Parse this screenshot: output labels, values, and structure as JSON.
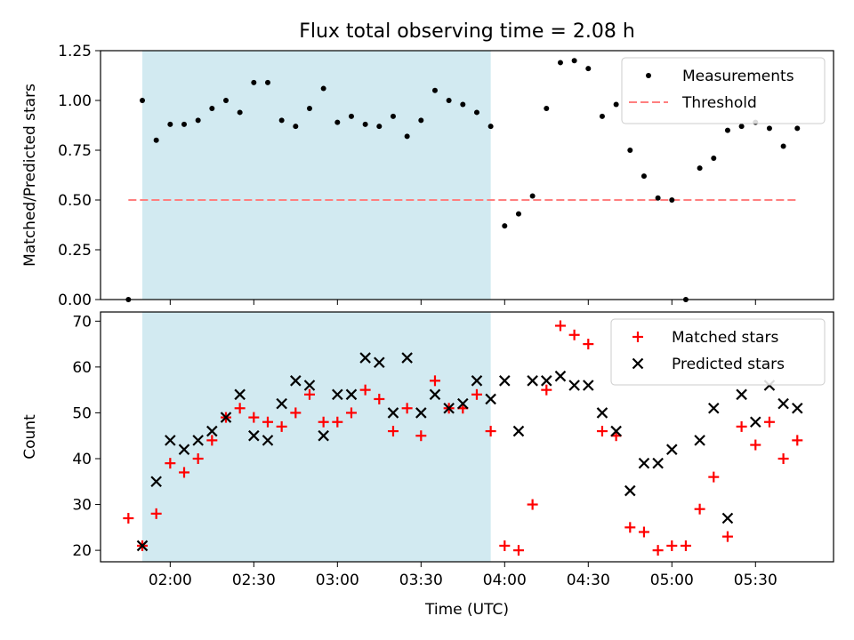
{
  "figure_title": "Flux total observing time = 2.08 h",
  "chart_data": [
    {
      "type": "scatter",
      "title": "Flux total observing time = 2.08 h",
      "xlabel": "",
      "ylabel": "Matched/Predicted stars",
      "xlim": [
        "01:35",
        "05:58"
      ],
      "ylim": [
        0,
        1.25
      ],
      "yticks": [
        "0.00",
        "0.25",
        "0.50",
        "0.75",
        "1.00",
        "1.25"
      ],
      "xtick_positions": [
        "02:00",
        "02:30",
        "03:00",
        "03:30",
        "04:00",
        "04:30",
        "05:00",
        "05:30"
      ],
      "highlight_span": [
        "01:50",
        "03:55"
      ],
      "highlight_color": "#add8e6",
      "threshold": {
        "y": 0.5,
        "x_from": "01:45",
        "x_to": "05:45",
        "label": "Threshold",
        "color": "#ff7f7f"
      },
      "legend": {
        "position": "top-right",
        "entries": [
          "Measurements",
          "Threshold"
        ]
      },
      "series": [
        {
          "name": "Measurements",
          "marker": "dot",
          "color": "#000000",
          "points": [
            [
              "01:45",
              0.0
            ],
            [
              "01:50",
              1.0
            ],
            [
              "01:55",
              0.8
            ],
            [
              "02:00",
              0.88
            ],
            [
              "02:05",
              0.88
            ],
            [
              "02:10",
              0.9
            ],
            [
              "02:15",
              0.96
            ],
            [
              "02:20",
              1.0
            ],
            [
              "02:25",
              0.94
            ],
            [
              "02:30",
              1.09
            ],
            [
              "02:35",
              1.09
            ],
            [
              "02:40",
              0.9
            ],
            [
              "02:45",
              0.87
            ],
            [
              "02:50",
              0.96
            ],
            [
              "02:55",
              1.06
            ],
            [
              "03:00",
              0.89
            ],
            [
              "03:05",
              0.92
            ],
            [
              "03:10",
              0.88
            ],
            [
              "03:15",
              0.87
            ],
            [
              "03:20",
              0.92
            ],
            [
              "03:25",
              0.82
            ],
            [
              "03:30",
              0.9
            ],
            [
              "03:35",
              1.05
            ],
            [
              "03:40",
              1.0
            ],
            [
              "03:45",
              0.98
            ],
            [
              "03:50",
              0.94
            ],
            [
              "03:55",
              0.87
            ],
            [
              "04:00",
              0.37
            ],
            [
              "04:05",
              0.43
            ],
            [
              "04:10",
              0.52
            ],
            [
              "04:15",
              0.96
            ],
            [
              "04:20",
              1.19
            ],
            [
              "04:25",
              1.2
            ],
            [
              "04:30",
              1.16
            ],
            [
              "04:35",
              0.92
            ],
            [
              "04:40",
              0.98
            ],
            [
              "04:45",
              0.75
            ],
            [
              "04:50",
              0.62
            ],
            [
              "04:55",
              0.51
            ],
            [
              "05:00",
              0.5
            ],
            [
              "05:05",
              0.0
            ],
            [
              "05:10",
              0.66
            ],
            [
              "05:15",
              0.71
            ],
            [
              "05:20",
              0.85
            ],
            [
              "05:25",
              0.87
            ],
            [
              "05:30",
              0.89
            ],
            [
              "05:35",
              0.86
            ],
            [
              "05:40",
              0.77
            ],
            [
              "05:45",
              0.86
            ]
          ]
        }
      ]
    },
    {
      "type": "scatter",
      "title": "",
      "xlabel": "Time (UTC)",
      "ylabel": "Count",
      "xlim": [
        "01:35",
        "05:58"
      ],
      "ylim": [
        17.5,
        72
      ],
      "yticks": [
        "20",
        "30",
        "40",
        "50",
        "60",
        "70"
      ],
      "xticks": [
        "02:00",
        "02:30",
        "03:00",
        "03:30",
        "04:00",
        "04:30",
        "05:00",
        "05:30"
      ],
      "highlight_span": [
        "01:50",
        "03:55"
      ],
      "highlight_color": "#add8e6",
      "legend": {
        "position": "top-right",
        "entries": [
          "Matched stars",
          "Predicted stars"
        ]
      },
      "series": [
        {
          "name": "Matched stars",
          "marker": "plus",
          "color": "#ff0000",
          "points": [
            [
              "01:45",
              27
            ],
            [
              "01:50",
              21
            ],
            [
              "01:55",
              28
            ],
            [
              "02:00",
              39
            ],
            [
              "02:05",
              37
            ],
            [
              "02:10",
              40
            ],
            [
              "02:15",
              44
            ],
            [
              "02:20",
              49
            ],
            [
              "02:25",
              51
            ],
            [
              "02:30",
              49
            ],
            [
              "02:35",
              48
            ],
            [
              "02:40",
              47
            ],
            [
              "02:45",
              50
            ],
            [
              "02:50",
              54
            ],
            [
              "02:55",
              48
            ],
            [
              "03:00",
              48
            ],
            [
              "03:05",
              50
            ],
            [
              "03:10",
              55
            ],
            [
              "03:15",
              53
            ],
            [
              "03:20",
              46
            ],
            [
              "03:25",
              51
            ],
            [
              "03:30",
              45
            ],
            [
              "03:35",
              57
            ],
            [
              "03:40",
              51
            ],
            [
              "03:45",
              51
            ],
            [
              "03:50",
              54
            ],
            [
              "03:55",
              46
            ],
            [
              "04:00",
              21
            ],
            [
              "04:05",
              20
            ],
            [
              "04:10",
              30
            ],
            [
              "04:15",
              55
            ],
            [
              "04:20",
              69
            ],
            [
              "04:25",
              67
            ],
            [
              "04:30",
              65
            ],
            [
              "04:35",
              46
            ],
            [
              "04:40",
              45
            ],
            [
              "04:45",
              25
            ],
            [
              "04:50",
              24
            ],
            [
              "04:55",
              20
            ],
            [
              "05:00",
              21
            ],
            [
              "05:05",
              21
            ],
            [
              "05:10",
              29
            ],
            [
              "05:15",
              36
            ],
            [
              "05:20",
              23
            ],
            [
              "05:25",
              47
            ],
            [
              "05:30",
              43
            ],
            [
              "05:35",
              48
            ],
            [
              "05:40",
              40
            ],
            [
              "05:45",
              44
            ]
          ]
        },
        {
          "name": "Predicted stars",
          "marker": "x",
          "color": "#000000",
          "points": [
            [
              "01:50",
              21
            ],
            [
              "01:55",
              35
            ],
            [
              "02:00",
              44
            ],
            [
              "02:05",
              42
            ],
            [
              "02:10",
              44
            ],
            [
              "02:15",
              46
            ],
            [
              "02:20",
              49
            ],
            [
              "02:25",
              54
            ],
            [
              "02:30",
              45
            ],
            [
              "02:35",
              44
            ],
            [
              "02:40",
              52
            ],
            [
              "02:45",
              57
            ],
            [
              "02:50",
              56
            ],
            [
              "02:55",
              45
            ],
            [
              "03:00",
              54
            ],
            [
              "03:05",
              54
            ],
            [
              "03:10",
              62
            ],
            [
              "03:15",
              61
            ],
            [
              "03:20",
              50
            ],
            [
              "03:25",
              62
            ],
            [
              "03:30",
              50
            ],
            [
              "03:35",
              54
            ],
            [
              "03:40",
              51
            ],
            [
              "03:45",
              52
            ],
            [
              "03:50",
              57
            ],
            [
              "03:55",
              53
            ],
            [
              "04:00",
              57
            ],
            [
              "04:05",
              46
            ],
            [
              "04:10",
              57
            ],
            [
              "04:15",
              57
            ],
            [
              "04:20",
              58
            ],
            [
              "04:25",
              56
            ],
            [
              "04:30",
              56
            ],
            [
              "04:35",
              50
            ],
            [
              "04:40",
              46
            ],
            [
              "04:45",
              33
            ],
            [
              "04:50",
              39
            ],
            [
              "04:55",
              39
            ],
            [
              "05:00",
              42
            ],
            [
              "05:10",
              44
            ],
            [
              "05:15",
              51
            ],
            [
              "05:20",
              27
            ],
            [
              "05:25",
              54
            ],
            [
              "05:30",
              48
            ],
            [
              "05:35",
              56
            ],
            [
              "05:40",
              52
            ],
            [
              "05:45",
              51
            ]
          ]
        }
      ]
    }
  ]
}
